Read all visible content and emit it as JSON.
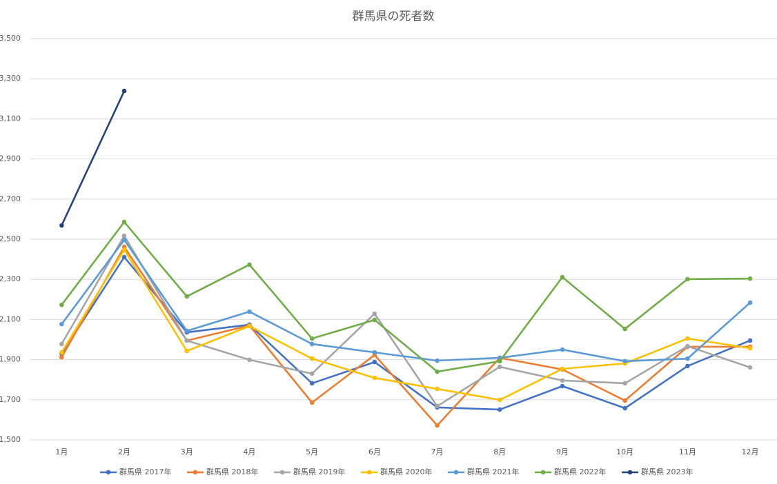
{
  "chart_data": {
    "type": "line",
    "title": "群馬県の死者数",
    "categories": [
      "1月",
      "2月",
      "3月",
      "4月",
      "5月",
      "6月",
      "7月",
      "8月",
      "9月",
      "10月",
      "11月",
      "12月"
    ],
    "series": [
      {
        "name": "群馬県 2017年",
        "color": "#4472c4",
        "values": [
          1930,
          2411,
          2036,
          2074,
          1782,
          1888,
          1662,
          1651,
          1768,
          1658,
          1868,
          1995
        ]
      },
      {
        "name": "群馬県 2018年",
        "color": "#ed7d31",
        "values": [
          1912,
          2462,
          1995,
          2070,
          1686,
          1923,
          1572,
          1909,
          1851,
          1696,
          1964,
          1964
        ]
      },
      {
        "name": "群馬県 2019年",
        "color": "#a5a5a5",
        "values": [
          1978,
          2517,
          1995,
          1899,
          1830,
          2129,
          1668,
          1864,
          1796,
          1782,
          1967,
          1861
        ]
      },
      {
        "name": "群馬県 2020年",
        "color": "#ffc000",
        "values": [
          1936,
          2448,
          1943,
          2067,
          1905,
          1809,
          1754,
          1699,
          1854,
          1881,
          2005,
          1957
        ]
      },
      {
        "name": "群馬県 2021年",
        "color": "#5b9bd5",
        "values": [
          2077,
          2497,
          2043,
          2139,
          1978,
          1936,
          1895,
          1909,
          1950,
          1892,
          1905,
          2184
        ]
      },
      {
        "name": "群馬県 2022年",
        "color": "#70ad47",
        "values": [
          2173,
          2586,
          2215,
          2373,
          2005,
          2098,
          1840,
          1892,
          2311,
          2053,
          2301,
          2304
        ]
      },
      {
        "name": "群馬県 2023年",
        "color": "#264478",
        "values": [
          2569,
          3239,
          null,
          null,
          null,
          null,
          null,
          null,
          null,
          null,
          null,
          null
        ]
      }
    ],
    "ylim": [
      1500,
      3500
    ],
    "yticks": [
      {
        "value": 1500,
        "label": "1,500"
      },
      {
        "value": 1700,
        "label": "1,700"
      },
      {
        "value": 1900,
        "label": "1,900"
      },
      {
        "value": 2100,
        "label": "2,100"
      },
      {
        "value": 2300,
        "label": "2,300"
      },
      {
        "value": 2500,
        "label": "2,500"
      },
      {
        "value": 2700,
        "label": "2,700"
      },
      {
        "value": 2900,
        "label": "2,900"
      },
      {
        "value": 3100,
        "label": "3,100"
      },
      {
        "value": 3300,
        "label": "3,300"
      },
      {
        "value": 3500,
        "label": "3,500"
      }
    ],
    "grid": true,
    "legend": "bottom"
  }
}
